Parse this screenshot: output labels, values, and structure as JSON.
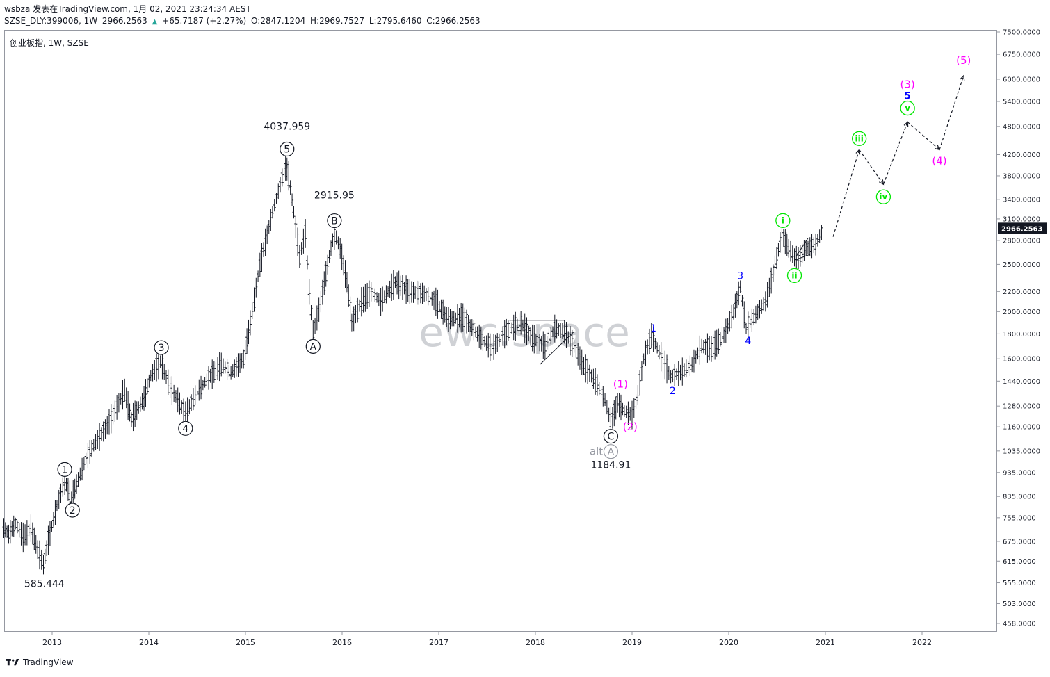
{
  "header": {
    "line1": "wsbza 发表在TradingView.com, 1月 02, 2021 23:24:34 AEST",
    "symbol": "SZSE_DLY:399006, 1W",
    "last": "2966.2563",
    "change_arrow": "▲",
    "change": "+65.7187 (+2.27%)",
    "open": "O:2847.1204",
    "high": "H:2969.7527",
    "low": "L:2795.6460",
    "close": "C:2966.2563"
  },
  "chart_title": "创业板指, 1W, SZSE",
  "watermark": "ewc.space",
  "footer": {
    "brand": "TradingView"
  },
  "colors": {
    "black": "#131722",
    "blue": "#0000ff",
    "magenta": "#ff00ff",
    "green": "#00e600",
    "gray": "#9598a1",
    "price_tag": "#131722"
  },
  "chart_data": {
    "type": "line",
    "description_free": true,
    "x_ticks": [
      {
        "label": "2013",
        "t": 2013.0
      },
      {
        "label": "2014",
        "t": 2014.0
      },
      {
        "label": "2015",
        "t": 2015.0
      },
      {
        "label": "2016",
        "t": 2016.0
      },
      {
        "label": "2017",
        "t": 2017.0
      },
      {
        "label": "2018",
        "t": 2018.0
      },
      {
        "label": "2019",
        "t": 2019.0
      },
      {
        "label": "2020",
        "t": 2020.0
      },
      {
        "label": "2021",
        "t": 2021.0
      },
      {
        "label": "2022",
        "t": 2022.0
      }
    ],
    "y_scale": "log",
    "y_ticks": [
      {
        "label": "7500.0000",
        "v": 7500
      },
      {
        "label": "6750.0000",
        "v": 6750
      },
      {
        "label": "6000.0000",
        "v": 6000
      },
      {
        "label": "5400.0000",
        "v": 5400
      },
      {
        "label": "4800.0000",
        "v": 4800
      },
      {
        "label": "4200.0000",
        "v": 4200
      },
      {
        "label": "3800.0000",
        "v": 3800
      },
      {
        "label": "3400.0000",
        "v": 3400
      },
      {
        "label": "3100.0000",
        "v": 3100
      },
      {
        "label": "2800.0000",
        "v": 2800
      },
      {
        "label": "2500.0000",
        "v": 2500
      },
      {
        "label": "2200.0000",
        "v": 2200
      },
      {
        "label": "2000.0000",
        "v": 2000
      },
      {
        "label": "1800.0000",
        "v": 1800
      },
      {
        "label": "1600.0000",
        "v": 1600
      },
      {
        "label": "1440.0000",
        "v": 1440
      },
      {
        "label": "1280.0000",
        "v": 1280
      },
      {
        "label": "1160.0000",
        "v": 1160
      },
      {
        "label": "1035.0000",
        "v": 1035
      },
      {
        "label": "935.0000",
        "v": 935
      },
      {
        "label": "835.0000",
        "v": 835
      },
      {
        "label": "755.0000",
        "v": 755
      },
      {
        "label": "675.0000",
        "v": 675
      },
      {
        "label": "615.0000",
        "v": 615
      },
      {
        "label": "555.0000",
        "v": 555
      },
      {
        "label": "503.0000",
        "v": 503
      },
      {
        "label": "458.0000",
        "v": 458
      }
    ],
    "last_price_label": "2966.2563",
    "last_price": 2966.2563,
    "price_path": [
      [
        2012.5,
        720
      ],
      [
        2012.55,
        700
      ],
      [
        2012.62,
        735
      ],
      [
        2012.7,
        690
      ],
      [
        2012.78,
        720
      ],
      [
        2012.85,
        650
      ],
      [
        2012.91,
        605
      ],
      [
        2012.96,
        680
      ],
      [
        2013.05,
        800
      ],
      [
        2013.13,
        900
      ],
      [
        2013.2,
        830
      ],
      [
        2013.27,
        905
      ],
      [
        2013.35,
        1000
      ],
      [
        2013.45,
        1080
      ],
      [
        2013.55,
        1150
      ],
      [
        2013.65,
        1250
      ],
      [
        2013.75,
        1380
      ],
      [
        2013.82,
        1200
      ],
      [
        2013.95,
        1330
      ],
      [
        2014.02,
        1480
      ],
      [
        2014.12,
        1580
      ],
      [
        2014.22,
        1400
      ],
      [
        2014.3,
        1320
      ],
      [
        2014.38,
        1230
      ],
      [
        2014.48,
        1350
      ],
      [
        2014.6,
        1450
      ],
      [
        2014.75,
        1560
      ],
      [
        2014.85,
        1500
      ],
      [
        2014.98,
        1600
      ],
      [
        2015.05,
        1900
      ],
      [
        2015.15,
        2500
      ],
      [
        2015.28,
        3200
      ],
      [
        2015.4,
        3900
      ],
      [
        2015.43,
        4038
      ],
      [
        2015.5,
        3200
      ],
      [
        2015.56,
        2600
      ],
      [
        2015.62,
        2900
      ],
      [
        2015.66,
        2200
      ],
      [
        2015.7,
        1800
      ],
      [
        2015.78,
        2100
      ],
      [
        2015.85,
        2500
      ],
      [
        2015.92,
        2916
      ],
      [
        2015.98,
        2700
      ],
      [
        2016.05,
        2300
      ],
      [
        2016.1,
        1900
      ],
      [
        2016.2,
        2100
      ],
      [
        2016.3,
        2200
      ],
      [
        2016.4,
        2100
      ],
      [
        2016.55,
        2300
      ],
      [
        2016.7,
        2200
      ],
      [
        2016.85,
        2180
      ],
      [
        2016.97,
        2100
      ],
      [
        2017.1,
        1930
      ],
      [
        2017.25,
        1950
      ],
      [
        2017.4,
        1800
      ],
      [
        2017.55,
        1680
      ],
      [
        2017.7,
        1820
      ],
      [
        2017.85,
        1900
      ],
      [
        2017.95,
        1780
      ],
      [
        2018.1,
        1700
      ],
      [
        2018.2,
        1850
      ],
      [
        2018.3,
        1820
      ],
      [
        2018.4,
        1700
      ],
      [
        2018.5,
        1550
      ],
      [
        2018.62,
        1440
      ],
      [
        2018.72,
        1320
      ],
      [
        2018.78,
        1185
      ],
      [
        2018.85,
        1300
      ],
      [
        2018.92,
        1250
      ],
      [
        2019.0,
        1230
      ],
      [
        2019.06,
        1350
      ],
      [
        2019.12,
        1600
      ],
      [
        2019.2,
        1790
      ],
      [
        2019.3,
        1620
      ],
      [
        2019.4,
        1470
      ],
      [
        2019.5,
        1500
      ],
      [
        2019.62,
        1560
      ],
      [
        2019.72,
        1700
      ],
      [
        2019.82,
        1680
      ],
      [
        2019.95,
        1790
      ],
      [
        2020.05,
        2000
      ],
      [
        2020.12,
        2250
      ],
      [
        2020.18,
        1850
      ],
      [
        2020.26,
        1950
      ],
      [
        2020.38,
        2100
      ],
      [
        2020.46,
        2400
      ],
      [
        2020.55,
        2880
      ],
      [
        2020.62,
        2700
      ],
      [
        2020.7,
        2550
      ],
      [
        2020.8,
        2700
      ],
      [
        2020.9,
        2750
      ],
      [
        2020.98,
        2966
      ]
    ],
    "projection_path": [
      [
        2021.08,
        2850
      ],
      [
        2021.35,
        4300
      ],
      [
        2021.6,
        3650
      ],
      [
        2021.85,
        4900
      ],
      [
        2022.18,
        4300
      ],
      [
        2022.43,
        6100
      ]
    ],
    "support_lines": [
      {
        "from": [
          2017.73,
          1920
        ],
        "to": [
          2018.3,
          1920
        ]
      },
      {
        "from": [
          2018.05,
          1560
        ],
        "to": [
          2018.4,
          1820
        ]
      },
      {
        "from": [
          2020.68,
          2550
        ],
        "to": [
          2020.84,
          2620
        ]
      },
      {
        "from": [
          2020.7,
          2600
        ],
        "to": [
          2020.82,
          2830
        ]
      }
    ],
    "labels": [
      {
        "text": "585.444",
        "t": 2012.92,
        "v": 585.444,
        "style": "price",
        "dy": 22
      },
      {
        "text": "4037.959",
        "t": 2015.43,
        "v": 4037.959,
        "style": "price",
        "dy": -48
      },
      {
        "text": "2915.95",
        "t": 2015.92,
        "v": 2915.95,
        "style": "price",
        "dy": -48
      },
      {
        "text": "1184.91",
        "t": 2018.78,
        "v": 1184.91,
        "style": "price",
        "dy": 66
      },
      {
        "text": "1",
        "t": 2013.13,
        "v": 900,
        "style": "circle",
        "dy": -16
      },
      {
        "text": "2",
        "t": 2013.21,
        "v": 830,
        "style": "circle",
        "dy": 18
      },
      {
        "text": "3",
        "t": 2014.13,
        "v": 1580,
        "style": "circle",
        "dy": -20
      },
      {
        "text": "4",
        "t": 2014.38,
        "v": 1230,
        "style": "circle",
        "dy": 20
      },
      {
        "text": "5",
        "t": 2015.43,
        "v": 4037.959,
        "style": "circle",
        "dy": -20
      },
      {
        "text": "B",
        "t": 2015.92,
        "v": 2915.95,
        "style": "circle",
        "dy": -16
      },
      {
        "text": "A",
        "t": 2015.7,
        "v": 1800,
        "style": "circle",
        "dy": 18
      },
      {
        "text": "C",
        "t": 2018.78,
        "v": 1184.91,
        "style": "circle",
        "dy": 20
      },
      {
        "text": "A",
        "t": 2018.78,
        "v": 1184.91,
        "style": "circle-gray",
        "dy": 42
      },
      {
        "text": "alt",
        "t": 2018.63,
        "v": 1184.91,
        "style": "gray",
        "dy": 42
      },
      {
        "text": "(1)",
        "t": 2018.88,
        "v": 1420,
        "style": "magenta",
        "dy": 0
      },
      {
        "text": "(2)",
        "t": 2018.98,
        "v": 1160,
        "style": "magenta",
        "dy": 0
      },
      {
        "text": "1",
        "t": 2019.22,
        "v": 1790,
        "style": "blue",
        "dy": -10
      },
      {
        "text": "2",
        "t": 2019.42,
        "v": 1470,
        "style": "blue",
        "dy": 20
      },
      {
        "text": "3",
        "t": 2020.12,
        "v": 2250,
        "style": "blue",
        "dy": -16
      },
      {
        "text": "4",
        "t": 2020.2,
        "v": 1850,
        "style": "blue",
        "dy": 18
      },
      {
        "text": "i",
        "t": 2020.56,
        "v": 2880,
        "style": "green",
        "dy": -20
      },
      {
        "text": "ii",
        "t": 2020.68,
        "v": 2550,
        "style": "green",
        "dy": 22
      },
      {
        "text": "iii",
        "t": 2021.35,
        "v": 4300,
        "style": "green",
        "dy": -16
      },
      {
        "text": "iv",
        "t": 2021.6,
        "v": 3650,
        "style": "green",
        "dy": 18
      },
      {
        "text": "v",
        "t": 2021.85,
        "v": 4900,
        "style": "green",
        "dy": -20
      },
      {
        "text": "5",
        "t": 2021.85,
        "v": 4900,
        "style": "blue-bold",
        "dy": -38
      },
      {
        "text": "(3)",
        "t": 2021.85,
        "v": 4900,
        "style": "magenta",
        "dy": -54
      },
      {
        "text": "(4)",
        "t": 2022.18,
        "v": 4300,
        "style": "magenta",
        "dy": 16
      },
      {
        "text": "(5)",
        "t": 2022.43,
        "v": 6100,
        "style": "magenta",
        "dy": -22
      }
    ]
  }
}
